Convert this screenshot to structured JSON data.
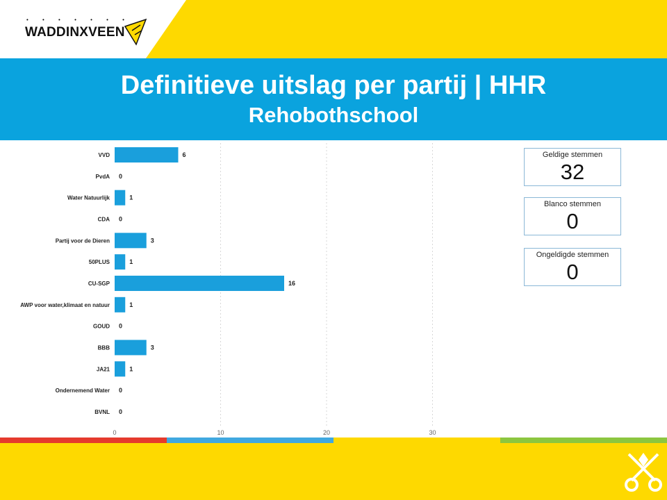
{
  "header": {
    "logo_text": "WADDINXVEEN",
    "title": "Definitieve uitslag per partij | HHR",
    "subtitle": "Rehobothschool"
  },
  "colors": {
    "yellow": "#fed900",
    "blue": "#0aa3de",
    "bar": "#1a9fdc",
    "stripe_red": "#e53a2d",
    "stripe_blue": "#40a8e0",
    "stripe_yellow": "#fed900",
    "stripe_green": "#8cc63f"
  },
  "kpis": [
    {
      "label": "Geldige stemmen",
      "value": "32"
    },
    {
      "label": "Blanco stemmen",
      "value": "0"
    },
    {
      "label": "Ongeldigde stemmen",
      "value": "0"
    }
  ],
  "chart_data": {
    "type": "bar",
    "orientation": "horizontal",
    "categories": [
      "VVD",
      "PvdA",
      "Water Natuurlijk",
      "CDA",
      "Partij voor de Dieren",
      "50PLUS",
      "CU-SGP",
      "AWP voor water,klimaat en natuur",
      "GOUD",
      "BBB",
      "JA21",
      "Ondernemend Water",
      "BVNL"
    ],
    "values": [
      6,
      0,
      1,
      0,
      3,
      1,
      16,
      1,
      0,
      3,
      1,
      0,
      0
    ],
    "xlim": [
      0,
      40
    ],
    "xticks": [
      0,
      10,
      20,
      30,
      40
    ],
    "grid": true,
    "data_labels": true
  }
}
